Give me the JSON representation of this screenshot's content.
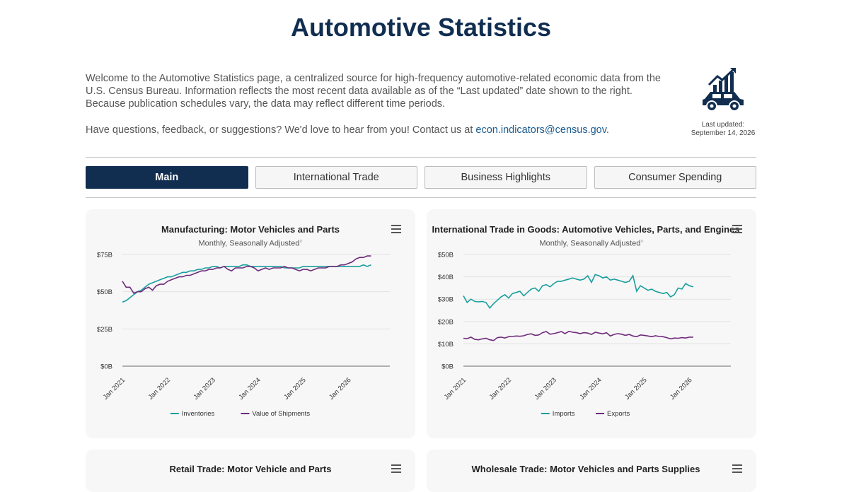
{
  "header": {
    "title": "Automotive Statistics",
    "intro_p1": "Welcome to the Automotive Statistics page, a centralized source for high-frequency automotive-related economic data from the U.S. Census Bureau. Information reflects the most recent data available as of the “Last updated” date shown to the right. Because publication schedules vary, the data may reflect different time periods.",
    "intro_p2_prefix": "Have questions, feedback, or suggestions? We'd love to hear from you! Contact us at ",
    "contact_email": "econ.indicators@census.gov",
    "intro_p2_suffix": ".",
    "last_updated_label": "Last updated:",
    "last_updated_date": "September 14, 2026",
    "logo_icon": "car-growth-chart-icon"
  },
  "tabs": [
    {
      "label": "Main",
      "active": true
    },
    {
      "label": "International Trade",
      "active": false
    },
    {
      "label": "Business Highlights",
      "active": false
    },
    {
      "label": "Consumer Spending",
      "active": false
    }
  ],
  "colors": {
    "navy": "#112e51",
    "teal": "#1a9e9e",
    "purple": "#6f2a7b"
  },
  "charts": [
    {
      "title": "Manufacturing: Motor Vehicles and Parts",
      "subtitle": "Monthly, Seasonally Adjusted",
      "menu_icon": "hamburger-menu-icon",
      "chart_data": {
        "type": "line",
        "x_ticks": [
          "Jan 2021",
          "Jan 2022",
          "Jan 2023",
          "Jan 2024",
          "Jan 2025",
          "Jan 2026"
        ],
        "y_ticks": [
          "$0B",
          "$25B",
          "$50B",
          "$75B"
        ],
        "ylim": [
          0,
          75
        ],
        "start": "Jan 2021",
        "series": [
          {
            "name": "Inventories",
            "color": "#1a9e9e",
            "values": [
              43,
              44,
              46,
              48,
              50,
              51,
              53,
              55,
              56,
              57,
              58,
              59,
              60,
              60,
              61,
              62,
              63,
              63,
              64,
              64,
              65,
              65,
              66,
              66,
              67,
              67,
              66,
              67,
              67,
              67,
              67,
              67,
              68,
              68,
              67,
              67,
              67,
              67,
              67,
              67,
              67,
              67,
              67,
              66,
              66,
              66,
              66,
              66,
              67,
              67,
              67,
              67,
              67,
              67,
              67,
              67,
              67,
              67,
              67,
              67,
              67,
              67,
              67,
              67,
              68,
              67,
              68
            ]
          },
          {
            "name": "Value of Shipments",
            "color": "#6f2a7b",
            "values": [
              57,
              53,
              53,
              49,
              50,
              50,
              52,
              53,
              51,
              54,
              55,
              55,
              57,
              58,
              59,
              60,
              60,
              61,
              61,
              62,
              63,
              64,
              64,
              65,
              65,
              66,
              66,
              67,
              65,
              64,
              66,
              66,
              66,
              67,
              67,
              66,
              64,
              65,
              66,
              65,
              66,
              66,
              66,
              67,
              66,
              66,
              65,
              64,
              65,
              65,
              64,
              65,
              66,
              66,
              66,
              67,
              67,
              67,
              68,
              68,
              69,
              70,
              72,
              73,
              73,
              74,
              74
            ]
          }
        ]
      }
    },
    {
      "title": "International Trade in Goods: Automotive Vehicles, Parts, and Engines",
      "subtitle": "Monthly, Seasonally Adjusted",
      "menu_icon": "hamburger-menu-icon",
      "chart_data": {
        "type": "line",
        "x_ticks": [
          "Jan 2021",
          "Jan 2022",
          "Jan 2023",
          "Jan 2024",
          "Jan 2025",
          "Jan 2026"
        ],
        "y_ticks": [
          "$0B",
          "$10B",
          "$20B",
          "$30B",
          "$40B",
          "$50B"
        ],
        "ylim": [
          0,
          50
        ],
        "start": "Jan 2021",
        "series": [
          {
            "name": "Imports",
            "color": "#1a9e9e",
            "values": [
              31.5,
              28.5,
              30,
              29,
              28.8,
              29,
              28.5,
              26,
              28,
              29.5,
              31,
              32,
              30.5,
              32.5,
              33,
              33.5,
              31.5,
              33,
              34.5,
              35,
              33.5,
              36,
              36.5,
              35.5,
              37,
              38,
              38,
              38.5,
              39,
              39.5,
              39,
              38.5,
              39,
              40.5,
              37.5,
              41,
              40.5,
              39.5,
              40,
              38.5,
              39,
              38.5,
              38,
              37.5,
              38,
              40.5,
              33.5,
              36,
              35,
              34,
              34.5,
              33.5,
              33,
              32.5,
              33,
              31,
              32,
              35,
              34.5,
              37,
              36,
              35.5
            ]
          },
          {
            "name": "Exports",
            "color": "#6f2a7b",
            "values": [
              12.5,
              12.3,
              13,
              12,
              11.8,
              12.2,
              12.5,
              11.8,
              11.5,
              12.8,
              13,
              12.6,
              13.2,
              13.3,
              13.5,
              13.4,
              13.6,
              14.2,
              14.5,
              13.8,
              14,
              15,
              15.5,
              14.3,
              14.6,
              15,
              15.5,
              14.6,
              15.6,
              15.2,
              15,
              14.6,
              15,
              14.8,
              14.2,
              15.2,
              14.8,
              14.5,
              15,
              13.5,
              14.2,
              14.6,
              14.3,
              13.8,
              14.2,
              13.5,
              13.2,
              14,
              13.8,
              13.5,
              13.2,
              13.6,
              13.3,
              13.2,
              12.8,
              12.2,
              12.6,
              12.5,
              12.8,
              12.6,
              13,
              13
            ]
          }
        ]
      }
    },
    {
      "title": "Retail Trade: Motor Vehicle and Parts",
      "menu_icon": "hamburger-menu-icon"
    },
    {
      "title": "Wholesale Trade: Motor Vehicles and Parts Supplies",
      "menu_icon": "hamburger-menu-icon"
    }
  ]
}
